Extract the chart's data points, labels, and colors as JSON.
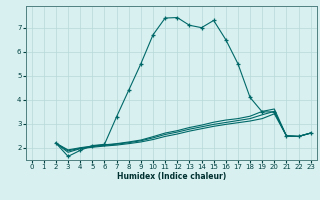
{
  "xlabel": "Humidex (Indice chaleur)",
  "bg_color": "#d8f0f0",
  "grid_color": "#b8d8d8",
  "line_color": "#006868",
  "xlim": [
    -0.5,
    23.5
  ],
  "ylim": [
    1.5,
    7.9
  ],
  "x_ticks": [
    0,
    1,
    2,
    3,
    4,
    5,
    6,
    7,
    8,
    9,
    10,
    11,
    12,
    13,
    14,
    15,
    16,
    17,
    18,
    19,
    20,
    21,
    22,
    23
  ],
  "y_ticks": [
    2,
    3,
    4,
    5,
    6,
    7
  ],
  "curve1_x": [
    2,
    3,
    4,
    5,
    6,
    7,
    8,
    9,
    10,
    11,
    12,
    13,
    14,
    15,
    16,
    17,
    18,
    19,
    20,
    21,
    22,
    23
  ],
  "curve1_y": [
    2.2,
    1.65,
    1.9,
    2.1,
    2.15,
    3.3,
    4.4,
    5.5,
    6.7,
    7.4,
    7.42,
    7.1,
    7.0,
    7.3,
    6.5,
    5.5,
    4.1,
    3.5,
    3.5,
    2.5,
    2.48,
    2.62
  ],
  "curve2_x": [
    2,
    3,
    4,
    5,
    6,
    7,
    8,
    9,
    10,
    11,
    12,
    13,
    14,
    15,
    16,
    17,
    18,
    19,
    20,
    21,
    22,
    23
  ],
  "curve2_y": [
    2.2,
    1.82,
    1.97,
    2.03,
    2.08,
    2.12,
    2.18,
    2.25,
    2.35,
    2.48,
    2.58,
    2.7,
    2.8,
    2.9,
    2.98,
    3.05,
    3.12,
    3.22,
    3.42,
    2.5,
    2.48,
    2.62
  ],
  "curve3_x": [
    2,
    3,
    4,
    5,
    6,
    7,
    8,
    9,
    10,
    11,
    12,
    13,
    14,
    15,
    16,
    17,
    18,
    19,
    20,
    21,
    22,
    23
  ],
  "curve3_y": [
    2.2,
    1.88,
    1.99,
    2.06,
    2.11,
    2.16,
    2.22,
    2.3,
    2.42,
    2.56,
    2.66,
    2.78,
    2.88,
    2.98,
    3.06,
    3.14,
    3.22,
    3.38,
    3.52,
    2.5,
    2.48,
    2.62
  ],
  "curve4_x": [
    2,
    3,
    4,
    5,
    6,
    7,
    8,
    9,
    10,
    11,
    12,
    13,
    14,
    15,
    16,
    17,
    18,
    19,
    20,
    21,
    22,
    23
  ],
  "curve4_y": [
    2.2,
    1.92,
    2.01,
    2.08,
    2.13,
    2.18,
    2.25,
    2.33,
    2.47,
    2.62,
    2.72,
    2.85,
    2.95,
    3.07,
    3.16,
    3.22,
    3.32,
    3.52,
    3.62,
    2.5,
    2.48,
    2.62
  ]
}
